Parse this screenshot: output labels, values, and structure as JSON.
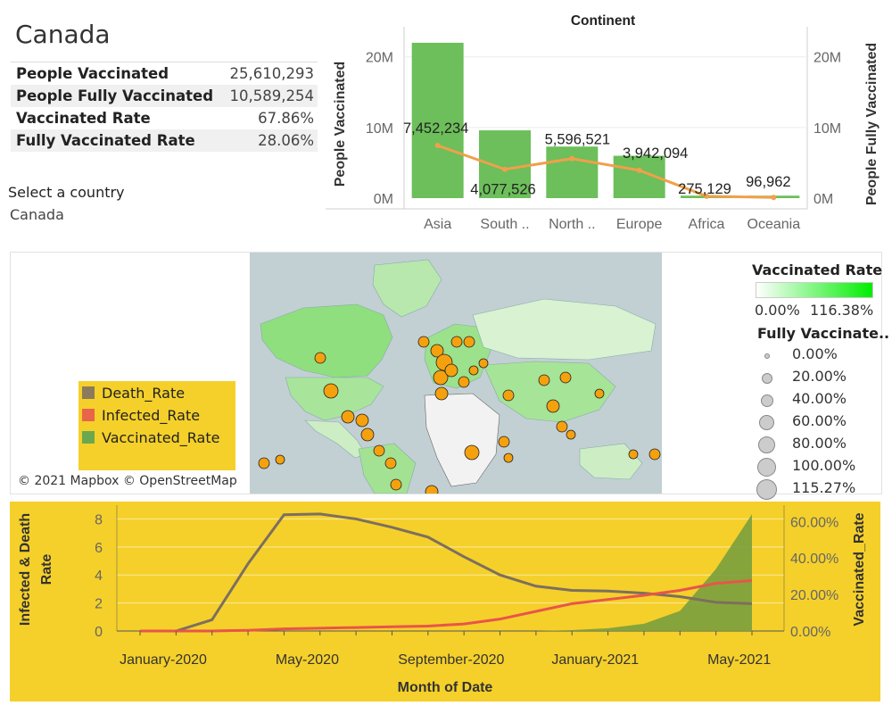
{
  "country": {
    "name": "Canada"
  },
  "kpis": [
    {
      "label": "People Vaccinated",
      "value": "25,610,293"
    },
    {
      "label": "People Fully Vaccinated",
      "value": "10,589,254"
    },
    {
      "label": "Vaccinated Rate",
      "value": "67.86%"
    },
    {
      "label": "Fully Vaccinated Rate",
      "value": "28.06%"
    }
  ],
  "filter": {
    "label": "Select a country",
    "value": "Canada"
  },
  "map": {
    "credit": "© 2021 Mapbox © OpenStreetMap",
    "legend": [
      {
        "name": "Death_Rate",
        "color": "#8b7b5b"
      },
      {
        "name": "Infected_Rate",
        "color": "#e8654a"
      },
      {
        "name": "Vaccinated_Rate",
        "color": "#6aa84f"
      }
    ],
    "color_legend": {
      "title": "Vaccinated Rate",
      "min": "0.00%",
      "max": "116.38%"
    },
    "size_legend": {
      "title": "Fully Vaccinate..",
      "items": [
        "0.00%",
        "20.00%",
        "40.00%",
        "60.00%",
        "80.00%",
        "100.00%",
        "115.27%"
      ]
    }
  },
  "chart_data": [
    {
      "type": "bar",
      "title": "Continent",
      "ylabel": "People Vaccinated",
      "y2label": "People Fully Vaccinated",
      "categories": [
        "Asia",
        "South ..",
        "North ..",
        "Europe",
        "Africa",
        "Oceania"
      ],
      "series": [
        {
          "name": "People Vaccinated",
          "values": [
            22000000,
            9600000,
            7300000,
            6000000,
            350000,
            350000
          ],
          "color": "#6cbf5a"
        },
        {
          "name": "People Fully Vaccinated",
          "values": [
            7452234,
            4077526,
            5596521,
            3942094,
            275129,
            96962
          ],
          "color": "#f0a04b"
        }
      ],
      "point_labels": [
        "7,452,234",
        "4,077,526",
        "5,596,521",
        "3,942,094",
        "275,129",
        "96,962"
      ],
      "yticks": [
        "0M",
        "10M",
        "20M"
      ],
      "ylim": [
        0,
        23000000
      ]
    },
    {
      "type": "line",
      "xlabel": "Month of Date",
      "ylabel": "Infected & Death Rate",
      "y2label": "Vaccinated_Rate",
      "xtick_labels": [
        "January-2020",
        "May-2020",
        "September-2020",
        "January-2021",
        "May-2021"
      ],
      "yticks": [
        "0",
        "2",
        "4",
        "6",
        "8"
      ],
      "y2ticks": [
        "0.00%",
        "20.00%",
        "40.00%",
        "60.00%"
      ],
      "ylim": [
        0,
        8.6
      ],
      "y2lim": [
        0,
        66
      ],
      "x_months": [
        "2020-01",
        "2020-02",
        "2020-03",
        "2020-04",
        "2020-05",
        "2020-06",
        "2020-07",
        "2020-08",
        "2020-09",
        "2020-10",
        "2020-11",
        "2020-12",
        "2021-01",
        "2021-02",
        "2021-03",
        "2021-04",
        "2021-05",
        "2021-06"
      ],
      "series": [
        {
          "name": "Death_Rate",
          "color": "#7d6f5e",
          "values": [
            0,
            0,
            0.8,
            4.8,
            8.3,
            8.35,
            8.0,
            7.4,
            6.7,
            5.3,
            4.0,
            3.2,
            2.9,
            2.85,
            2.7,
            2.45,
            2.05,
            1.95
          ]
        },
        {
          "name": "Infected_Rate",
          "color": "#e8554a",
          "values": [
            0,
            0,
            0,
            0.05,
            0.15,
            0.2,
            0.25,
            0.3,
            0.35,
            0.5,
            0.85,
            1.4,
            1.95,
            2.25,
            2.55,
            2.9,
            3.4,
            3.6
          ]
        },
        {
          "name": "Vaccinated_Rate",
          "color": "#7a9e3e",
          "axis": "right",
          "values": [
            0,
            0,
            0,
            0,
            0,
            0,
            0,
            0,
            0,
            0,
            0,
            0,
            0.5,
            1.5,
            4,
            11,
            34,
            64
          ]
        }
      ]
    }
  ]
}
